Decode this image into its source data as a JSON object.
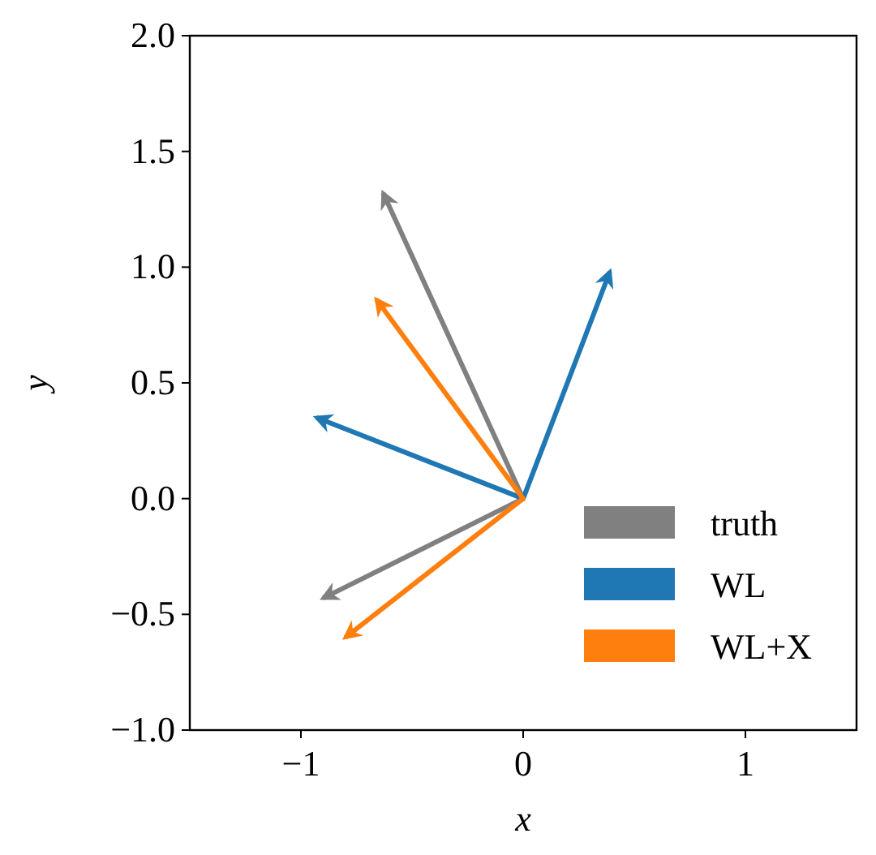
{
  "chart_data": {
    "type": "line",
    "xlabel": "x",
    "ylabel": "y",
    "xlim": [
      -1.5,
      1.5
    ],
    "xticks": [
      {
        "value": -1,
        "label": "−1"
      },
      0,
      1
    ],
    "ylim": [
      -1.0,
      2.0
    ],
    "yticks": [
      {
        "value": -1,
        "label": "−1.0"
      },
      {
        "value": -0.5,
        "label": "−0.5"
      },
      {
        "value": 0,
        "label": "0.0"
      },
      {
        "value": 0.5,
        "label": "0.5"
      },
      {
        "value": 1,
        "label": "1.0"
      },
      {
        "value": 1.5,
        "label": "1.5"
      },
      {
        "value": 2,
        "label": "2.0"
      }
    ],
    "grid": false,
    "legend": "bottom right",
    "marker": "none",
    "line_style": "solid",
    "series": [
      {
        "name": "truth",
        "color": "#808080",
        "x": [
          -0.63,
          0,
          -0.9
        ],
        "values": [
          1.32,
          0,
          -0.43
        ]
      },
      {
        "name": "WL",
        "color": "#1f77b4",
        "x": [
          -0.93,
          0,
          0.39
        ],
        "values": [
          0.35,
          0,
          0.98
        ]
      },
      {
        "name": "WL+X",
        "color": "#ff7f0e",
        "x": [
          -0.66,
          0,
          -0.8
        ],
        "values": [
          0.86,
          0,
          -0.6
        ]
      }
    ]
  }
}
